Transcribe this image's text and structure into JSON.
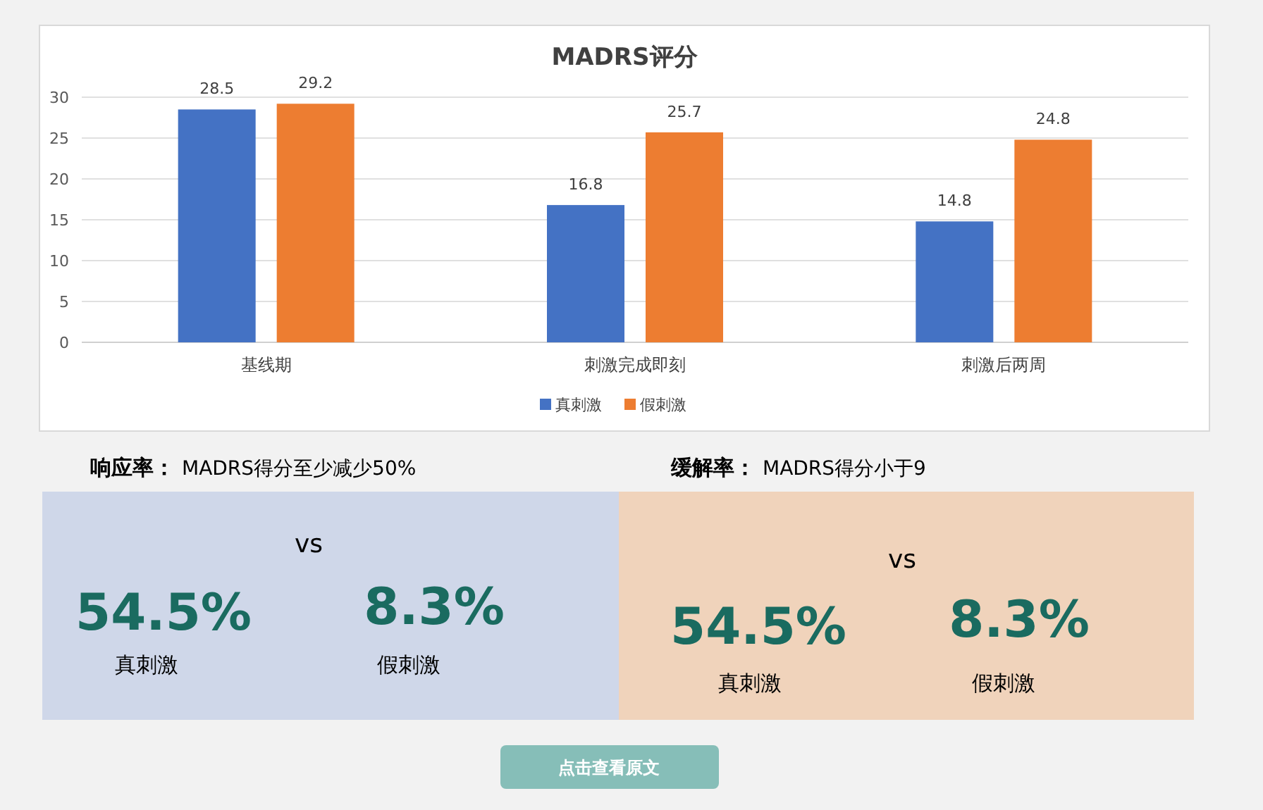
{
  "chart_data": [
    {
      "type": "bar",
      "title": "MADRS评分",
      "categories": [
        "基线期",
        "刺激完成即刻",
        "刺激后两周"
      ],
      "series": [
        {
          "name": "真刺激",
          "color": "#4472c4",
          "values": [
            28.5,
            16.8,
            14.8
          ]
        },
        {
          "name": "假刺激",
          "color": "#ed7d31",
          "values": [
            29.2,
            25.7,
            24.8
          ]
        }
      ],
      "ylim": [
        0,
        30
      ],
      "yticks": [
        0,
        5,
        10,
        15,
        20,
        25,
        30
      ],
      "grid": "y",
      "legend": "bottom",
      "data_labels": true
    },
    {
      "type": "other",
      "annotations": [
        "响应率：",
        "MADRS得分至少减少50%",
        "缓解率：",
        "MADRS得分小于9",
        "vs",
        "54.5%",
        "8.3%",
        "真刺激",
        "假刺激",
        "vs",
        "54.5%",
        "8.3%",
        "真刺激",
        "假刺激",
        "点击查看原文"
      ]
    }
  ]
}
